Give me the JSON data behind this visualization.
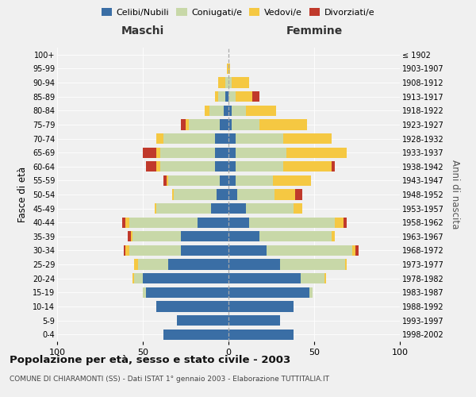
{
  "age_groups": [
    "0-4",
    "5-9",
    "10-14",
    "15-19",
    "20-24",
    "25-29",
    "30-34",
    "35-39",
    "40-44",
    "45-49",
    "50-54",
    "55-59",
    "60-64",
    "65-69",
    "70-74",
    "75-79",
    "80-84",
    "85-89",
    "90-94",
    "95-99",
    "100+"
  ],
  "birth_years": [
    "1998-2002",
    "1993-1997",
    "1988-1992",
    "1983-1987",
    "1978-1982",
    "1973-1977",
    "1968-1972",
    "1963-1967",
    "1958-1962",
    "1953-1957",
    "1948-1952",
    "1943-1947",
    "1938-1942",
    "1933-1937",
    "1928-1932",
    "1923-1927",
    "1918-1922",
    "1913-1917",
    "1908-1912",
    "1903-1907",
    "≤ 1902"
  ],
  "maschi": {
    "celibi": [
      38,
      30,
      42,
      48,
      50,
      35,
      28,
      28,
      18,
      10,
      7,
      5,
      8,
      8,
      8,
      5,
      3,
      2,
      0,
      0,
      0
    ],
    "coniugati": [
      0,
      0,
      0,
      2,
      5,
      18,
      30,
      28,
      40,
      32,
      25,
      30,
      32,
      32,
      30,
      18,
      8,
      4,
      2,
      0,
      0
    ],
    "vedovi": [
      0,
      0,
      0,
      0,
      1,
      2,
      2,
      1,
      2,
      1,
      1,
      1,
      2,
      2,
      4,
      2,
      3,
      2,
      4,
      1,
      0
    ],
    "divorziati": [
      0,
      0,
      0,
      0,
      0,
      0,
      1,
      2,
      2,
      0,
      0,
      2,
      6,
      8,
      0,
      3,
      0,
      0,
      0,
      0,
      0
    ]
  },
  "femmine": {
    "nubili": [
      38,
      30,
      38,
      47,
      42,
      30,
      22,
      18,
      12,
      10,
      5,
      4,
      4,
      4,
      4,
      2,
      2,
      0,
      0,
      0,
      0
    ],
    "coniugate": [
      0,
      0,
      0,
      2,
      14,
      38,
      50,
      42,
      50,
      28,
      22,
      22,
      28,
      30,
      28,
      16,
      8,
      4,
      2,
      0,
      0
    ],
    "vedove": [
      0,
      0,
      0,
      0,
      1,
      1,
      2,
      2,
      5,
      5,
      12,
      22,
      28,
      35,
      28,
      28,
      18,
      10,
      10,
      1,
      0
    ],
    "divorziate": [
      0,
      0,
      0,
      0,
      0,
      0,
      2,
      0,
      2,
      0,
      4,
      0,
      2,
      0,
      0,
      0,
      0,
      4,
      0,
      0,
      0
    ]
  },
  "color_celibi": "#3a6ea5",
  "color_coniugati": "#c8d8a8",
  "color_vedovi": "#f5c842",
  "color_divorziati": "#c0392b",
  "title": "Popolazione per età, sesso e stato civile - 2003",
  "subtitle": "COMUNE DI CHIARAMONTI (SS) - Dati ISTAT 1° gennaio 2003 - Elaborazione TUTTITALIA.IT",
  "xlabel_left": "Maschi",
  "xlabel_right": "Femmine",
  "ylabel_left": "Fasce di età",
  "ylabel_right": "Anni di nascita",
  "xlim": 100,
  "background_color": "#f0f0f0",
  "bar_height": 0.75
}
